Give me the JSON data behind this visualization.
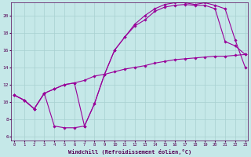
{
  "xlabel": "Windchill (Refroidissement éolien,°C)",
  "background_color": "#c5e8e8",
  "grid_color": "#a8d0d0",
  "line_color": "#990099",
  "x_ticks": [
    0,
    1,
    2,
    3,
    4,
    5,
    6,
    7,
    8,
    9,
    10,
    11,
    12,
    13,
    14,
    15,
    16,
    17,
    18,
    19,
    20,
    21,
    22,
    23
  ],
  "ylim": [
    5.5,
    21.5
  ],
  "xlim": [
    -0.3,
    23.3
  ],
  "yticks": [
    6,
    8,
    10,
    12,
    14,
    16,
    18,
    20
  ],
  "series1_x": [
    0,
    1,
    2,
    3,
    4,
    5,
    6,
    7,
    8,
    9,
    10,
    11,
    12,
    13,
    14,
    15,
    16,
    17,
    18,
    19,
    20,
    21,
    22,
    23
  ],
  "series1_y": [
    10.8,
    10.2,
    9.2,
    11.0,
    7.2,
    7.0,
    7.0,
    7.2,
    9.8,
    13.2,
    16.0,
    17.5,
    18.8,
    19.5,
    20.5,
    21.0,
    21.2,
    21.3,
    21.2,
    21.2,
    20.8,
    17.0,
    16.5,
    15.5
  ],
  "series2_x": [
    0,
    1,
    2,
    3,
    4,
    5,
    6,
    7,
    8,
    9,
    10,
    11,
    12,
    13,
    14,
    15,
    16,
    17,
    18,
    19,
    20,
    21,
    22,
    23
  ],
  "series2_y": [
    10.8,
    10.2,
    9.2,
    11.0,
    11.5,
    12.0,
    12.2,
    12.5,
    13.0,
    13.2,
    13.5,
    13.8,
    14.0,
    14.2,
    14.5,
    14.7,
    14.9,
    15.0,
    15.1,
    15.2,
    15.3,
    15.3,
    15.4,
    15.5
  ],
  "series3_x": [
    0,
    1,
    2,
    3,
    4,
    5,
    6,
    7,
    8,
    9,
    10,
    11,
    12,
    13,
    14,
    15,
    16,
    17,
    18,
    19,
    20,
    21,
    22,
    23
  ],
  "series3_y": [
    10.8,
    10.2,
    9.2,
    11.0,
    11.5,
    12.0,
    12.2,
    7.2,
    9.8,
    13.2,
    16.0,
    17.5,
    19.0,
    20.0,
    20.8,
    21.3,
    21.5,
    21.5,
    21.3,
    21.5,
    21.2,
    20.8,
    17.2,
    14.0
  ]
}
